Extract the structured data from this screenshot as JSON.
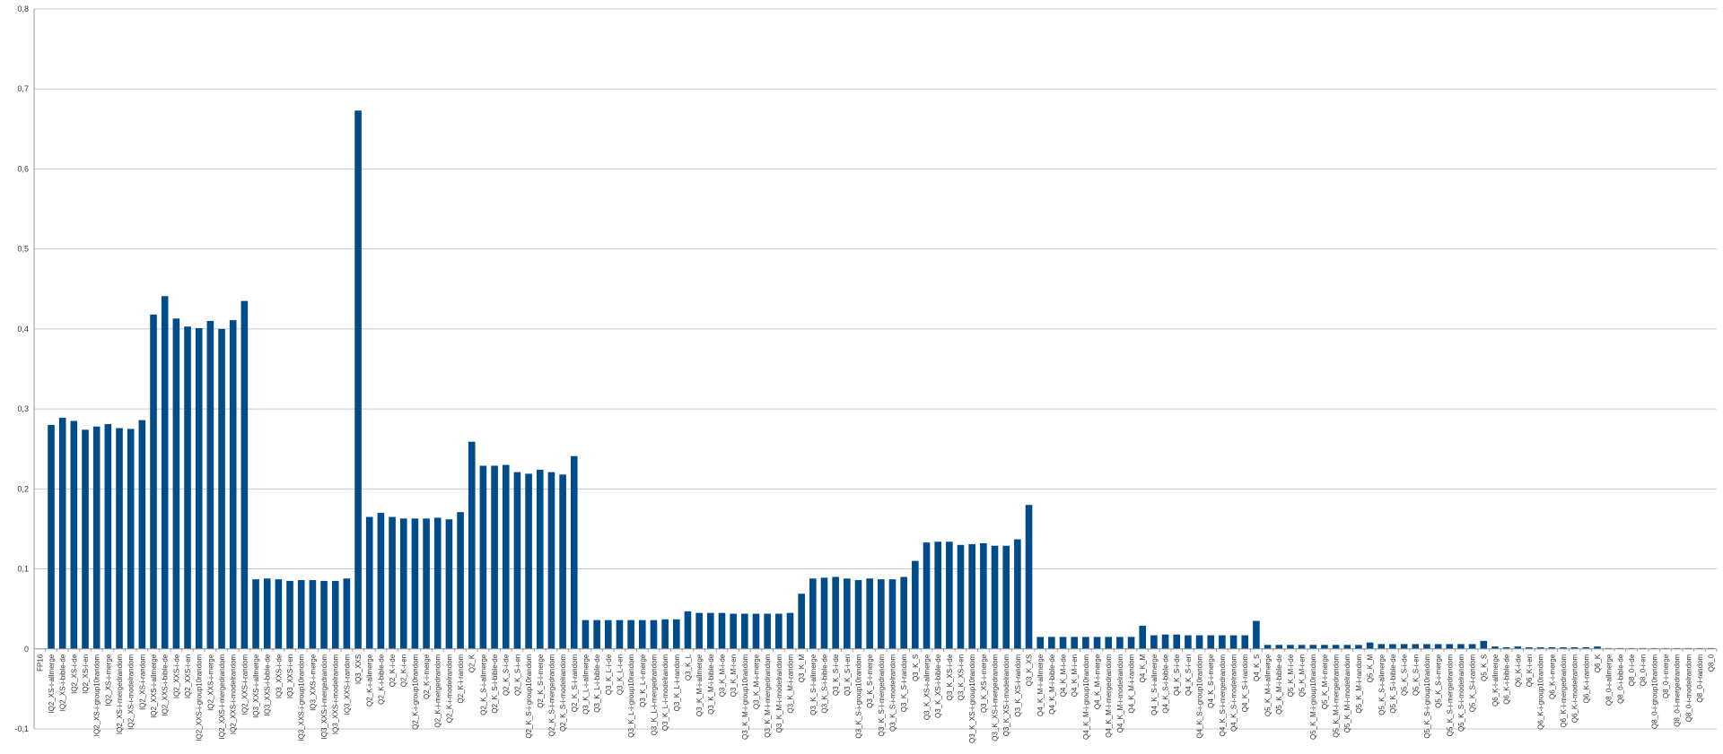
{
  "chart_data": {
    "type": "bar",
    "title": "",
    "xlabel": "",
    "ylabel": "",
    "ylim": [
      -0.1,
      0.8
    ],
    "y_ticks": [
      "-0,1",
      "0",
      "0,1",
      "0,2",
      "0,3",
      "0,4",
      "0,5",
      "0,6",
      "0,7",
      "0,8"
    ],
    "y_tick_values": [
      -0.1,
      0,
      0.1,
      0.2,
      0.3,
      0.4,
      0.5,
      0.6,
      0.7,
      0.8
    ],
    "grid": true,
    "legend": "none",
    "bar_color": "#004c8b",
    "categories": [
      "FP16",
      "IQ2_XS-i-allmerge",
      "IQ2_XS-i-bible-de",
      "IQ2_XS-i-de",
      "IQ2_XS-i-en",
      "IQ2_XS-i-group10random",
      "IQ2_XS-i-merge",
      "IQ2_XS-i-mergedrandom",
      "IQ2_XS-i-modelrandom",
      "IQ2_XS-i-random",
      "IQ2_XXS-i-allmerge",
      "IQ2_XXS-i-bible-de",
      "IQ2_XXS-i-de",
      "IQ2_XXS-i-en",
      "IQ2_XXS-i-group10random",
      "IQ2_XXS-i-merge",
      "IQ2_XXS-i-mergedrandom",
      "IQ2_XXS-i-modelrandom",
      "IQ2_XXS-i-random",
      "IQ3_XXS-i-allmerge",
      "IQ3_XXS-i-bible-de",
      "IQ3_XXS-i-de",
      "IQ3_XXS-i-en",
      "IQ3_XXS-i-group10random",
      "IQ3_XXS-i-merge",
      "IQ3_XXS-i-mergedrandom",
      "IQ3_XXS-i-modelrandom",
      "IQ3_XXS-i-random",
      "IQ3_XXS",
      "Q2_K-i-allmerge",
      "Q2_K-i-bible-de",
      "Q2_K-i-de",
      "Q2_K-i-en",
      "Q2_K-i-group10random",
      "Q2_K-i-merge",
      "Q2_K-i-mergedrandom",
      "Q2_K-i-modelrandom",
      "Q2_K-i-random",
      "Q2_K",
      "Q2_K_S-i-allmerge",
      "Q2_K_S-i-bible-de",
      "Q2_K_S-i-de",
      "Q2_K_S-i-en",
      "Q2_K_S-i-group10random",
      "Q2_K_S-i-merge",
      "Q2_K_S-i-mergedrandom",
      "Q2_K_S-i-modelrandom",
      "Q2_K_S-i-random",
      "Q3_K_L-i-allmerge",
      "Q3_K_L-i-bible-de",
      "Q3_K_L-i-de",
      "Q3_K_L-i-en",
      "Q3_K_L-i-group10random",
      "Q3_K_L-i-merge",
      "Q3_K_L-i-mergedrandom",
      "Q3_K_L-i-modelrandom",
      "Q3_K_L-i-random",
      "Q3_K_L",
      "Q3_K_M-i-allmerge",
      "Q3_K_M-i-bible-de",
      "Q3_K_M-i-de",
      "Q3_K_M-i-en",
      "Q3_K_M-i-group10random",
      "Q3_K_M-i-merge",
      "Q3_K_M-i-mergedrandom",
      "Q3_K_M-i-modelrandom",
      "Q3_K_M-i-random",
      "Q3_K_M",
      "Q3_K_S-i-allmerge",
      "Q3_K_S-i-bible-de",
      "Q3_K_S-i-de",
      "Q3_K_S-i-en",
      "Q3_K_S-i-group10random",
      "Q3_K_S-i-merge",
      "Q3_K_S-i-mergedrandom",
      "Q3_K_S-i-modelrandom",
      "Q3_K_S-i-random",
      "Q3_K_S",
      "Q3_K_XS-i-allmerge",
      "Q3_K_XS-i-bible-de",
      "Q3_K_XS-i-de",
      "Q3_K_XS-i-en",
      "Q3_K_XS-i-group10random",
      "Q3_K_XS-i-merge",
      "Q3_K_XS-i-mergedrandom",
      "Q3_K_XS-i-modelrandom",
      "Q3_K_XS-i-random",
      "Q3_K_XS",
      "Q4_K_M-i-allmerge",
      "Q4_K_M-i-bible-de",
      "Q4_K_M-i-de",
      "Q4_K_M-i-en",
      "Q4_K_M-i-group10random",
      "Q4_K_M-i-merge",
      "Q4_K_M-i-mergedrandom",
      "Q4_K_M-i-modelrandom",
      "Q4_K_M-i-random",
      "Q4_K_M",
      "Q4_K_S-i-allmerge",
      "Q4_K_S-i-bible-de",
      "Q4_K_S-i-de",
      "Q4_K_S-i-en",
      "Q4_K_S-i-group10random",
      "Q4_K_S-i-merge",
      "Q4_K_S-i-mergedrandom",
      "Q4_K_S-i-modelrandom",
      "Q4_K_S-i-random",
      "Q4_K_S",
      "Q5_K_M-i-allmerge",
      "Q5_K_M-i-bible-de",
      "Q5_K_M-i-de",
      "Q5_K_M-i-en",
      "Q5_K_M-i-group10random",
      "Q5_K_M-i-merge",
      "Q5_K_M-i-mergedrandom",
      "Q5_K_M-i-modelrandom",
      "Q5_K_M-i-random",
      "Q5_K_M",
      "Q5_K_S-i-allmerge",
      "Q5_K_S-i-bible-de",
      "Q5_K_S-i-de",
      "Q5_K_S-i-en",
      "Q5_K_S-i-group10random",
      "Q5_K_S-i-merge",
      "Q5_K_S-i-mergedrandom",
      "Q5_K_S-i-modelrandom",
      "Q5_K_S-i-random",
      "Q5_K_S",
      "Q6_K-i-allmerge",
      "Q6_K-i-bible-de",
      "Q6_K-i-de",
      "Q6_K-i-en",
      "Q6_K-i-group10random",
      "Q6_K-i-merge",
      "Q6_K-i-mergedrandom",
      "Q6_K-i-modelrandom",
      "Q6_K-i-random",
      "Q6_K",
      "Q8_0-i-allmerge",
      "Q8_0-i-bible-de",
      "Q8_0-i-de",
      "Q8_0-i-en",
      "Q8_0-i-group10random",
      "Q8_0-i-merge",
      "Q8_0-i-mergedrandom",
      "Q8_0-i-modelrandom",
      "Q8_0-i-random",
      "Q8_0"
    ],
    "values": [
      0,
      0.28,
      0.289,
      0.285,
      0.274,
      0.278,
      0.281,
      0.276,
      0.275,
      0.286,
      0.418,
      0.441,
      0.413,
      0.403,
      0.401,
      0.41,
      0.4,
      0.411,
      0.435,
      0.087,
      0.088,
      0.087,
      0.085,
      0.086,
      0.086,
      0.085,
      0.085,
      0.088,
      0.673,
      0.165,
      0.17,
      0.165,
      0.163,
      0.163,
      0.163,
      0.164,
      0.162,
      0.171,
      0.259,
      0.229,
      0.229,
      0.23,
      0.221,
      0.219,
      0.224,
      0.221,
      0.218,
      0.241,
      0.036,
      0.036,
      0.036,
      0.036,
      0.036,
      0.036,
      0.036,
      0.037,
      0.037,
      0.047,
      0.045,
      0.045,
      0.045,
      0.044,
      0.044,
      0.044,
      0.044,
      0.044,
      0.045,
      0.069,
      0.088,
      0.089,
      0.09,
      0.088,
      0.086,
      0.088,
      0.087,
      0.087,
      0.09,
      0.11,
      0.133,
      0.134,
      0.134,
      0.13,
      0.131,
      0.132,
      0.129,
      0.129,
      0.137,
      0.18,
      0.015,
      0.015,
      0.015,
      0.015,
      0.015,
      0.015,
      0.015,
      0.015,
      0.015,
      0.029,
      0.017,
      0.018,
      0.018,
      0.017,
      0.017,
      0.017,
      0.017,
      0.017,
      0.017,
      0.035,
      0.005,
      0.005,
      0.005,
      0.005,
      0.005,
      0.005,
      0.005,
      0.005,
      0.005,
      0.008,
      0.006,
      0.006,
      0.006,
      0.006,
      0.006,
      0.006,
      0.006,
      0.006,
      0.006,
      0.01,
      0.003,
      0.002,
      0.003,
      0.002,
      0.002,
      0.002,
      0.002,
      0.002,
      0.002,
      0.003,
      0.001,
      0.001,
      0.001,
      0.001,
      0.001,
      0.001,
      0.001,
      0.001,
      0.001,
      0.001
    ]
  }
}
